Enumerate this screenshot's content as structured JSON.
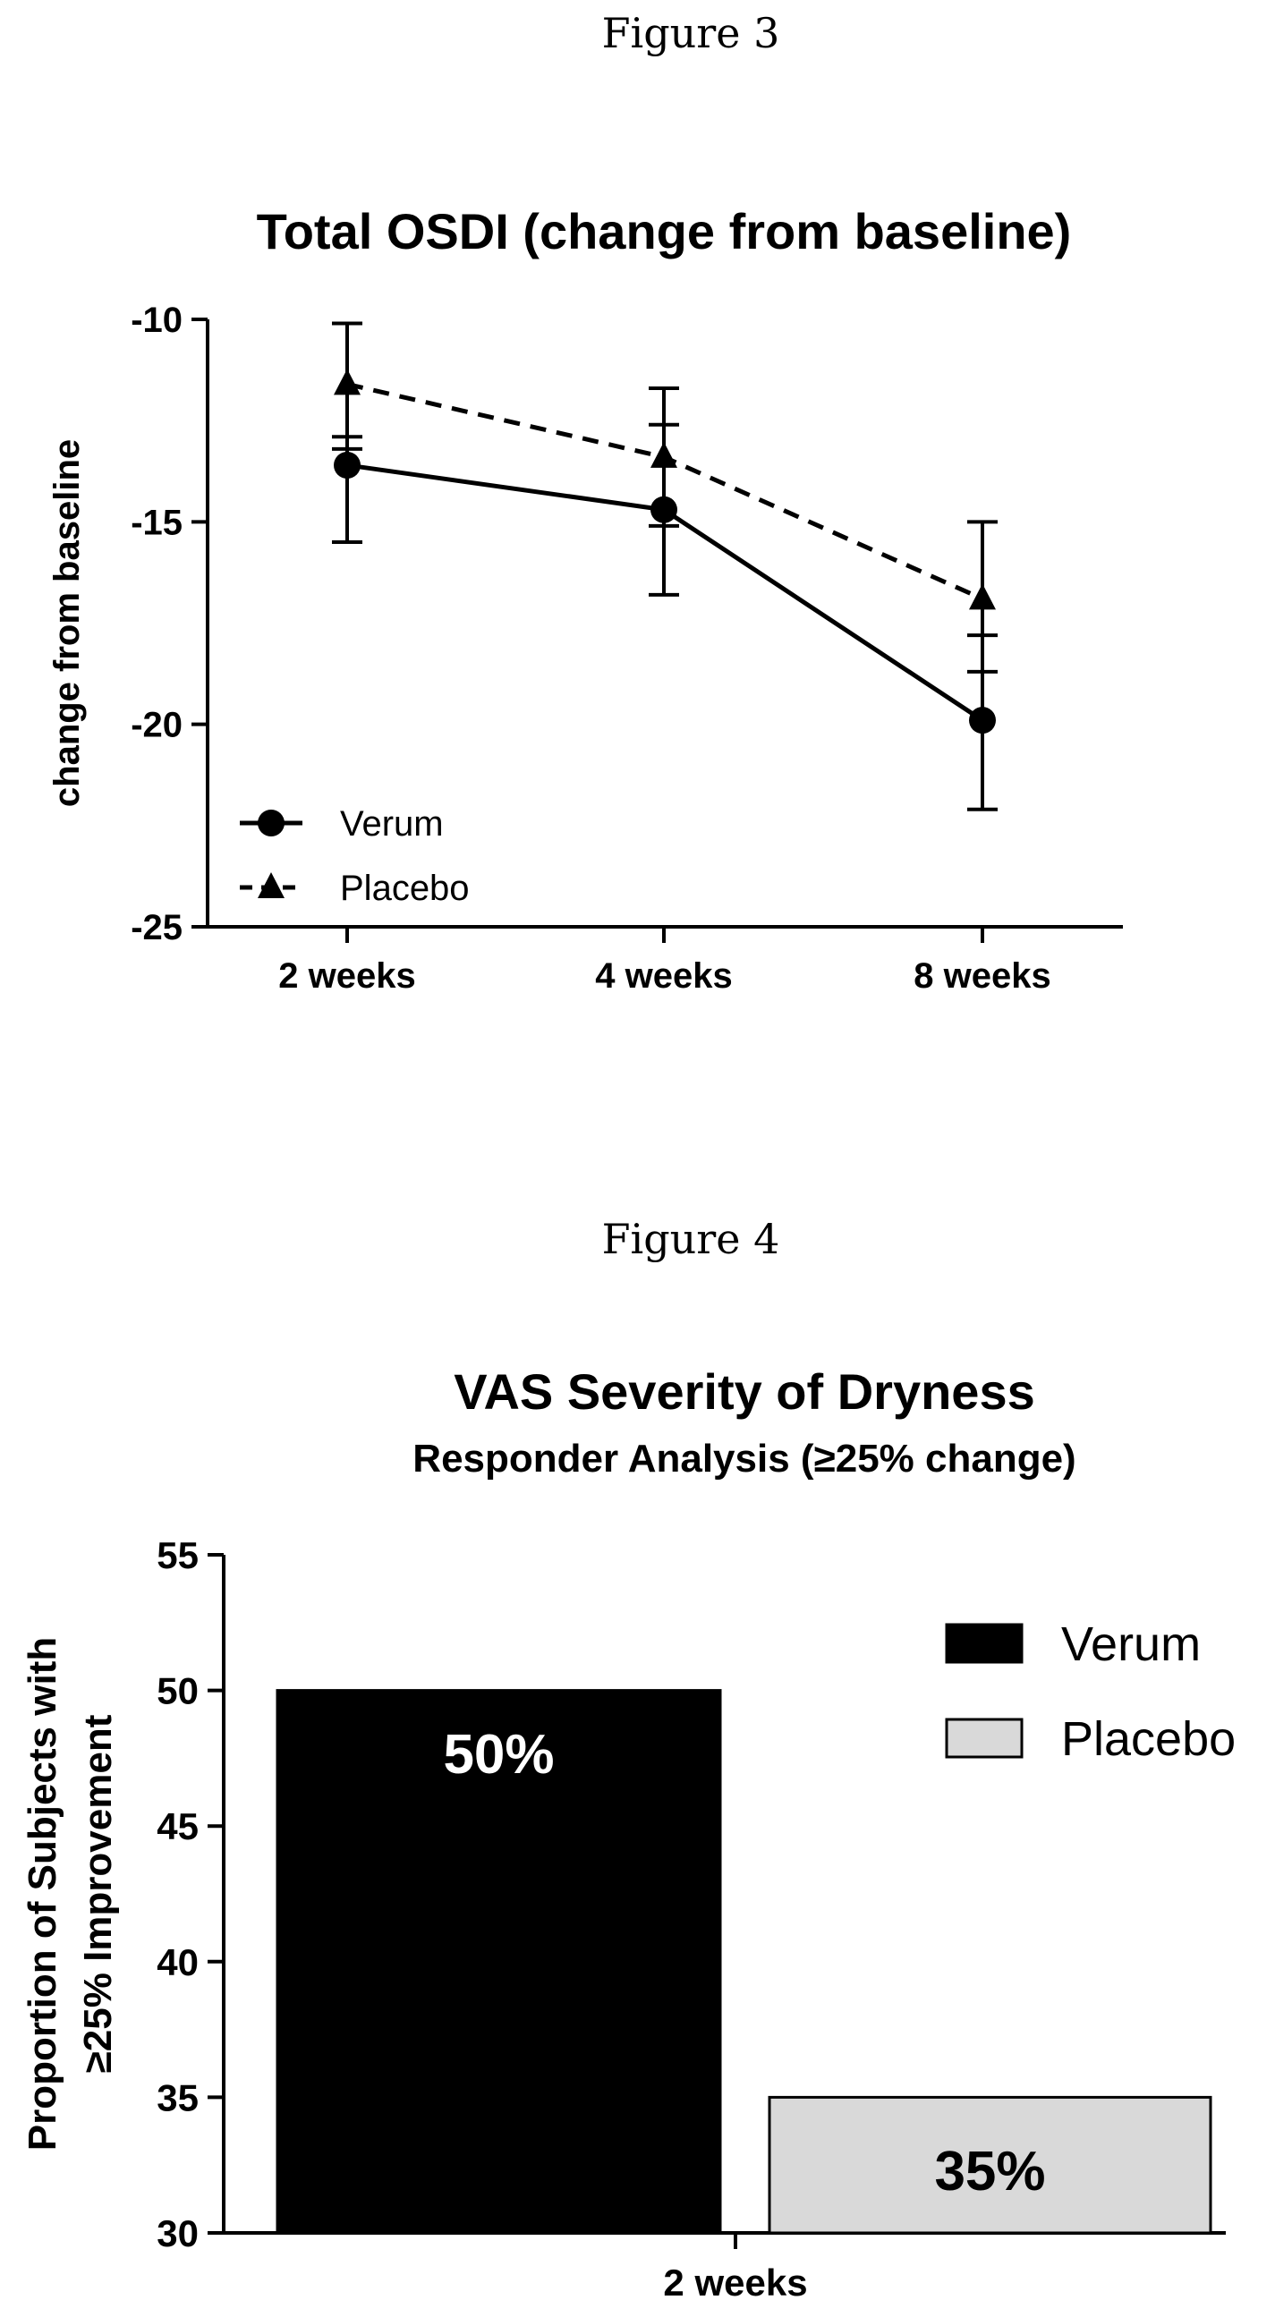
{
  "page": {
    "figure3_caption": "Figure 3",
    "figure4_caption": "Figure 4"
  },
  "chart_data": [
    {
      "type": "line",
      "title": "Total OSDI (change from baseline)",
      "xlabel": "",
      "ylabel": "change from baseline",
      "categories": [
        "2 weeks",
        "4 weeks",
        "8 weeks"
      ],
      "ylim": [
        -25,
        -10
      ],
      "yticks": [
        -10,
        -15,
        -20,
        -25
      ],
      "grid": false,
      "legend_position": "bottom-left",
      "series": [
        {
          "name": "Verum",
          "marker": "circle",
          "line_style": "solid",
          "color": "#000000",
          "values": [
            -13.6,
            -14.7,
            -19.9
          ],
          "error_low": [
            -15.5,
            -16.8,
            -22.1
          ],
          "error_high": [
            -12.9,
            -12.6,
            -17.8
          ]
        },
        {
          "name": "Placebo",
          "marker": "triangle",
          "line_style": "dashed",
          "color": "#000000",
          "values": [
            -11.6,
            -13.4,
            -16.9
          ],
          "error_low": [
            -13.2,
            -15.1,
            -18.7
          ],
          "error_high": [
            -10.1,
            -11.7,
            -15.0
          ]
        }
      ]
    },
    {
      "type": "bar",
      "title": "VAS Severity of Dryness",
      "subtitle": "Responder Analysis (≥25% change)",
      "xlabel": "",
      "ylabel_lines": [
        "Proportion of Subjects with",
        "≥25% Improvement"
      ],
      "categories": [
        "2 weeks"
      ],
      "ylim": [
        30,
        55
      ],
      "yticks": [
        30,
        35,
        40,
        45,
        50,
        55
      ],
      "grid": false,
      "legend_position": "top-right",
      "series": [
        {
          "name": "Verum",
          "color": "#000000",
          "label_color": "#ffffff",
          "values": [
            50
          ],
          "data_label": "50%"
        },
        {
          "name": "Placebo",
          "color": "#d9d9d9",
          "label_color": "#000000",
          "values": [
            35
          ],
          "data_label": "35%"
        }
      ]
    }
  ]
}
